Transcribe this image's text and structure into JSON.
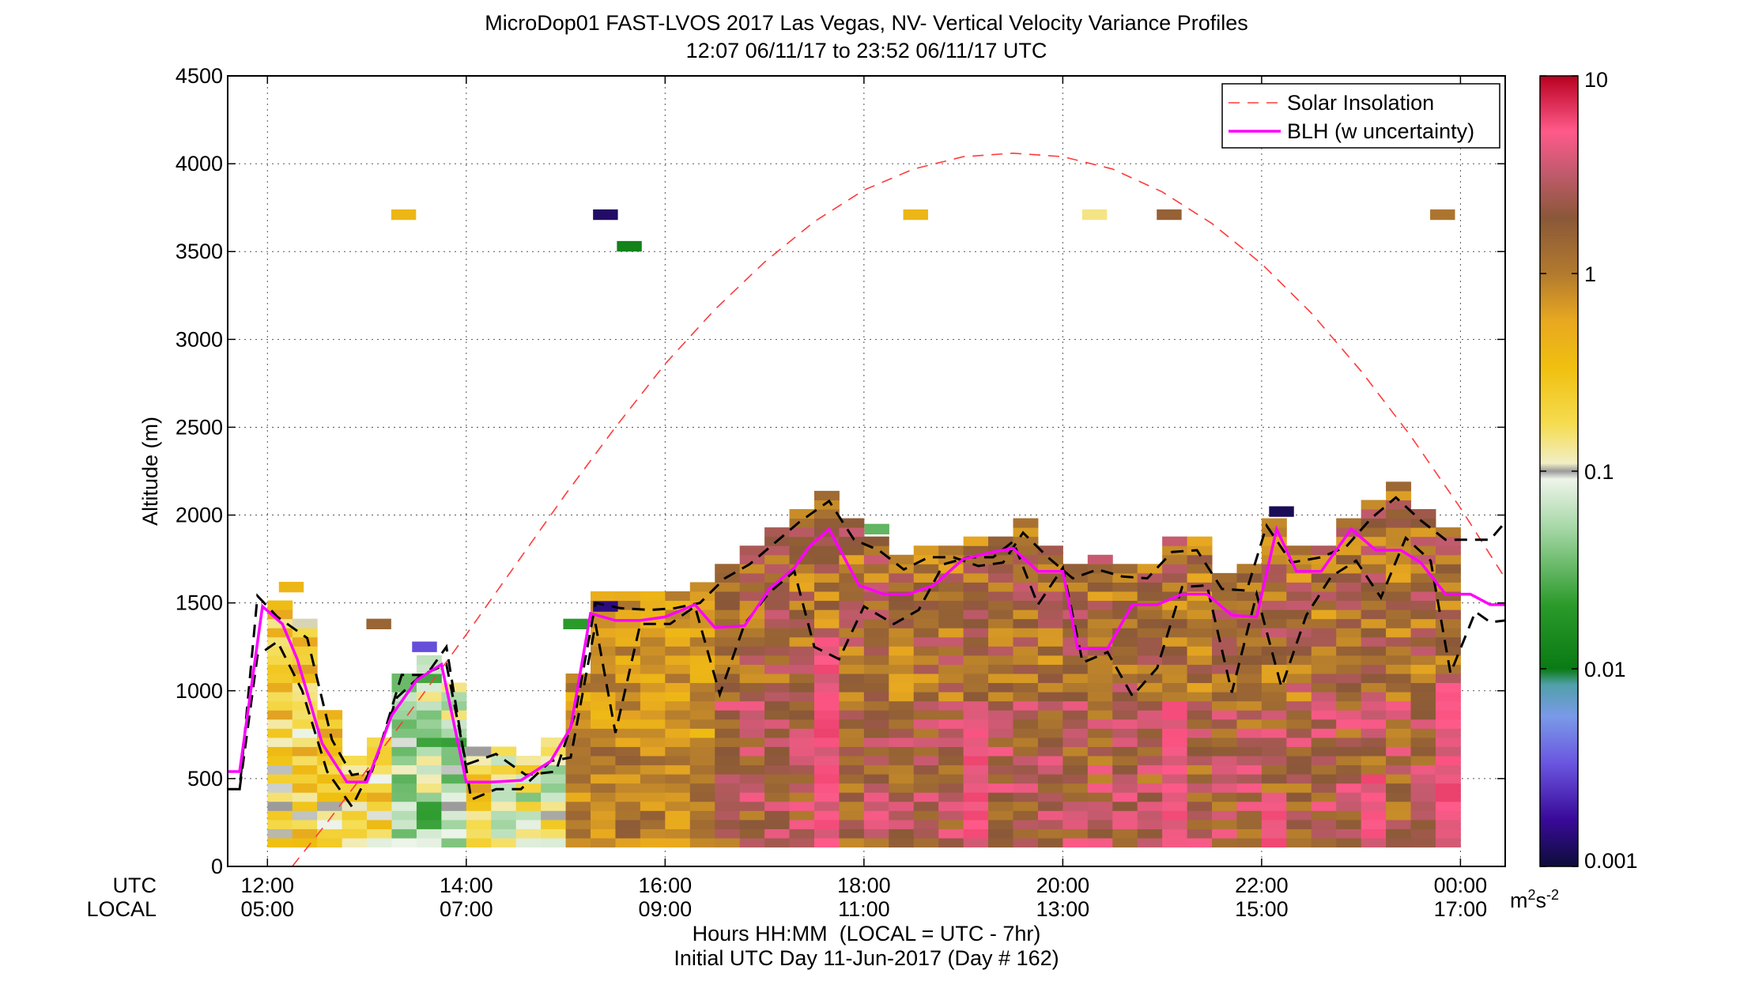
{
  "chart_data": {
    "type": "heatmap",
    "title": "MicroDop01 FAST-LVOS 2017 Las Vegas, NV- Vertical Velocity Variance Profiles",
    "subtitle": "12:07 06/11/17 to 23:52 06/11/17  UTC",
    "ylabel": "Altitude (m)",
    "xlabel": "Hours HH:MM  (LOCAL = UTC - 7hr)",
    "footer": "Initial UTC Day 11-Jun-2017 (Day # 162)",
    "x_row_labels": [
      "UTC",
      "LOCAL"
    ],
    "xlim_utc_hours": [
      11.6,
      24.45
    ],
    "ylim": [
      0,
      4500
    ],
    "yticks": [
      "0",
      "500",
      "1000",
      "1500",
      "2000",
      "2500",
      "3000",
      "3500",
      "4000",
      "4500"
    ],
    "xticks_utc": [
      "12:00",
      "14:00",
      "16:00",
      "18:00",
      "20:00",
      "22:00",
      "00:00"
    ],
    "xticks_local": [
      "05:00",
      "07:00",
      "09:00",
      "11:00",
      "13:00",
      "15:00",
      "17:00"
    ],
    "xtick_hours": [
      12,
      14,
      16,
      18,
      20,
      22,
      24
    ],
    "grid": true,
    "legend_position": "top-right",
    "legend": [
      {
        "label": "Solar Insolation",
        "style": "dashed",
        "color": "#ff3b3b"
      },
      {
        "label": "BLH (w uncertainty)",
        "style": "solid",
        "color": "#ff00ff"
      }
    ],
    "colorbar": {
      "scale": "log",
      "range": [
        0.001,
        10
      ],
      "ticks": [
        "0.001",
        "0.01",
        "0.1",
        "1",
        "10"
      ],
      "unit_base": "m",
      "unit_sup1": "2",
      "unit_mid": "s",
      "unit_sup2": "-2"
    },
    "blh_m": [
      [
        11.6,
        540
      ],
      [
        11.72,
        540
      ],
      [
        11.95,
        1480
      ],
      [
        12.15,
        1380
      ],
      [
        12.3,
        1180
      ],
      [
        12.55,
        700
      ],
      [
        12.8,
        480
      ],
      [
        13.0,
        480
      ],
      [
        13.25,
        860
      ],
      [
        13.5,
        1060
      ],
      [
        13.75,
        1150
      ],
      [
        14.0,
        480
      ],
      [
        14.25,
        480
      ],
      [
        14.55,
        490
      ],
      [
        14.85,
        600
      ],
      [
        15.05,
        790
      ],
      [
        15.25,
        1440
      ],
      [
        15.5,
        1400
      ],
      [
        15.75,
        1400
      ],
      [
        16.0,
        1420
      ],
      [
        16.3,
        1490
      ],
      [
        16.5,
        1360
      ],
      [
        16.8,
        1370
      ],
      [
        17.05,
        1580
      ],
      [
        17.3,
        1700
      ],
      [
        17.45,
        1820
      ],
      [
        17.65,
        1920
      ],
      [
        17.95,
        1600
      ],
      [
        18.2,
        1550
      ],
      [
        18.45,
        1550
      ],
      [
        18.7,
        1600
      ],
      [
        19.0,
        1750
      ],
      [
        19.3,
        1790
      ],
      [
        19.5,
        1810
      ],
      [
        19.75,
        1680
      ],
      [
        20.0,
        1680
      ],
      [
        20.15,
        1240
      ],
      [
        20.45,
        1240
      ],
      [
        20.7,
        1490
      ],
      [
        20.95,
        1490
      ],
      [
        21.2,
        1550
      ],
      [
        21.45,
        1550
      ],
      [
        21.7,
        1430
      ],
      [
        21.95,
        1420
      ],
      [
        22.15,
        1920
      ],
      [
        22.35,
        1680
      ],
      [
        22.6,
        1680
      ],
      [
        22.9,
        1920
      ],
      [
        23.15,
        1800
      ],
      [
        23.4,
        1800
      ],
      [
        23.6,
        1730
      ],
      [
        23.85,
        1550
      ],
      [
        24.1,
        1550
      ],
      [
        24.3,
        1490
      ],
      [
        24.45,
        1490
      ]
    ],
    "blh_upper_m": [
      [
        11.6,
        440
      ],
      [
        11.72,
        440
      ],
      [
        11.9,
        1540
      ],
      [
        12.1,
        1420
      ],
      [
        12.4,
        1300
      ],
      [
        12.65,
        720
      ],
      [
        12.85,
        520
      ],
      [
        13.05,
        540
      ],
      [
        13.3,
        960
      ],
      [
        13.55,
        1090
      ],
      [
        13.8,
        1150
      ],
      [
        14.0,
        580
      ],
      [
        14.3,
        640
      ],
      [
        14.6,
        520
      ],
      [
        14.9,
        540
      ],
      [
        15.1,
        880
      ],
      [
        15.3,
        1500
      ],
      [
        15.55,
        1470
      ],
      [
        15.85,
        1460
      ],
      [
        16.1,
        1470
      ],
      [
        16.35,
        1500
      ],
      [
        16.6,
        1640
      ],
      [
        16.85,
        1720
      ],
      [
        17.1,
        1840
      ],
      [
        17.35,
        1960
      ],
      [
        17.65,
        2080
      ],
      [
        17.9,
        1860
      ],
      [
        18.15,
        1800
      ],
      [
        18.4,
        1690
      ],
      [
        18.65,
        1760
      ],
      [
        18.9,
        1760
      ],
      [
        19.15,
        1710
      ],
      [
        19.4,
        1730
      ],
      [
        19.6,
        1900
      ],
      [
        19.85,
        1760
      ],
      [
        20.1,
        1640
      ],
      [
        20.35,
        1690
      ],
      [
        20.6,
        1650
      ],
      [
        20.85,
        1640
      ],
      [
        21.1,
        1790
      ],
      [
        21.35,
        1800
      ],
      [
        21.6,
        1580
      ],
      [
        21.85,
        1570
      ],
      [
        22.05,
        1940
      ],
      [
        22.3,
        1730
      ],
      [
        22.6,
        1760
      ],
      [
        22.85,
        1820
      ],
      [
        23.1,
        1980
      ],
      [
        23.35,
        2100
      ],
      [
        23.6,
        1970
      ],
      [
        23.85,
        1860
      ],
      [
        24.1,
        1860
      ],
      [
        24.3,
        1860
      ],
      [
        24.45,
        1960
      ]
    ],
    "blh_lower_m": [
      [
        11.72,
        440
      ],
      [
        11.9,
        1200
      ],
      [
        12.1,
        1280
      ],
      [
        12.35,
        1000
      ],
      [
        12.6,
        540
      ],
      [
        12.85,
        340
      ],
      [
        13.1,
        620
      ],
      [
        13.35,
        1090
      ],
      [
        13.6,
        1090
      ],
      [
        13.8,
        1250
      ],
      [
        14.05,
        380
      ],
      [
        14.3,
        440
      ],
      [
        14.55,
        440
      ],
      [
        14.85,
        600
      ],
      [
        15.05,
        620
      ],
      [
        15.3,
        1380
      ],
      [
        15.5,
        760
      ],
      [
        15.75,
        1380
      ],
      [
        16.05,
        1380
      ],
      [
        16.3,
        1480
      ],
      [
        16.55,
        980
      ],
      [
        16.8,
        1380
      ],
      [
        17.05,
        1560
      ],
      [
        17.3,
        1680
      ],
      [
        17.5,
        1250
      ],
      [
        17.75,
        1180
      ],
      [
        18.0,
        1480
      ],
      [
        18.3,
        1380
      ],
      [
        18.55,
        1460
      ],
      [
        18.8,
        1720
      ],
      [
        19.05,
        1760
      ],
      [
        19.3,
        1760
      ],
      [
        19.5,
        1850
      ],
      [
        19.75,
        1490
      ],
      [
        20.0,
        1700
      ],
      [
        20.2,
        1160
      ],
      [
        20.45,
        1220
      ],
      [
        20.7,
        970
      ],
      [
        20.95,
        1130
      ],
      [
        21.2,
        1590
      ],
      [
        21.45,
        1600
      ],
      [
        21.7,
        990
      ],
      [
        21.95,
        1550
      ],
      [
        22.2,
        1020
      ],
      [
        22.45,
        1430
      ],
      [
        22.7,
        1650
      ],
      [
        22.95,
        1740
      ],
      [
        23.2,
        1530
      ],
      [
        23.45,
        1870
      ],
      [
        23.7,
        1740
      ],
      [
        23.9,
        1100
      ],
      [
        24.15,
        1450
      ],
      [
        24.3,
        1390
      ],
      [
        24.45,
        1400
      ]
    ],
    "solar_insolation_altitude_m": [
      [
        12.25,
        0
      ],
      [
        12.6,
        250
      ],
      [
        13.0,
        550
      ],
      [
        13.5,
        930
      ],
      [
        14.0,
        1320
      ],
      [
        14.5,
        1720
      ],
      [
        15.0,
        2120
      ],
      [
        15.5,
        2500
      ],
      [
        16.0,
        2860
      ],
      [
        16.5,
        3170
      ],
      [
        17.0,
        3440
      ],
      [
        17.5,
        3670
      ],
      [
        18.0,
        3850
      ],
      [
        18.5,
        3970
      ],
      [
        19.0,
        4040
      ],
      [
        19.5,
        4060
      ],
      [
        20.0,
        4040
      ],
      [
        20.5,
        3970
      ],
      [
        21.0,
        3840
      ],
      [
        21.5,
        3660
      ],
      [
        22.0,
        3430
      ],
      [
        22.5,
        3150
      ],
      [
        23.0,
        2820
      ],
      [
        23.5,
        2450
      ],
      [
        24.0,
        2040
      ],
      [
        24.45,
        1640
      ]
    ],
    "isolated_cells": [
      {
        "hour": 13.37,
        "altitude_m": 3710,
        "value": 0.4
      },
      {
        "hour": 15.4,
        "altitude_m": 3710,
        "value": 0.0013
      },
      {
        "hour": 15.64,
        "altitude_m": 3530,
        "value": 0.012
      },
      {
        "hour": 18.52,
        "altitude_m": 3710,
        "value": 0.4
      },
      {
        "hour": 20.32,
        "altitude_m": 3710,
        "value": 0.14
      },
      {
        "hour": 21.07,
        "altitude_m": 3710,
        "value": 1.6
      },
      {
        "hour": 23.82,
        "altitude_m": 3710,
        "value": 1.1
      },
      {
        "hour": 12.24,
        "altitude_m": 1590,
        "value": 0.4
      },
      {
        "hour": 13.12,
        "altitude_m": 1380,
        "value": 1.5
      },
      {
        "hour": 13.58,
        "altitude_m": 1250,
        "value": 0.003
      },
      {
        "hour": 15.4,
        "altitude_m": 1480,
        "value": 0.0015
      },
      {
        "hour": 22.2,
        "altitude_m": 2020,
        "value": 0.0012
      },
      {
        "hour": 18.13,
        "altitude_m": 1920,
        "value": 0.03
      },
      {
        "hour": 15.1,
        "altitude_m": 1380,
        "value": 0.02
      }
    ]
  }
}
